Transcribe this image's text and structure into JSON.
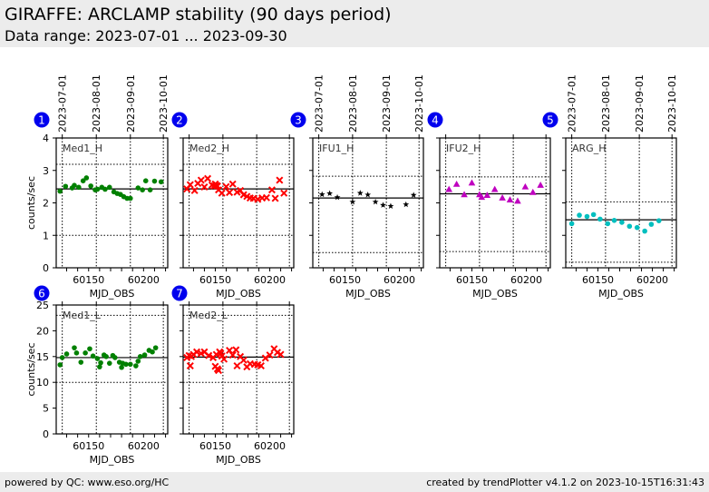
{
  "header": {
    "title": "GIRAFFE: ARCLAMP stability (90 days period)",
    "subtitle": "Data range: 2023-07-01 ... 2023-09-30"
  },
  "footer": {
    "left": "powered by QC: www.eso.org/HC",
    "right": "created by trendPlotter v4.1.2 on 2023-10-15T16:31:43"
  },
  "chart_data": [
    {
      "type": "scatter",
      "panel": 1,
      "label": "Med1_H",
      "color": "#008000",
      "marker": "circle",
      "xlabel": "MJD_OBS",
      "ylabel": "counts/sec",
      "xlim": [
        60120.5,
        60222
      ],
      "ylim": [
        0,
        4
      ],
      "xticks": [
        60150,
        60200
      ],
      "yticks": [
        0,
        1,
        2,
        3,
        4
      ],
      "date_ticks": [
        {
          "label": "2023-07-01",
          "mjd": 60126
        },
        {
          "label": "2023-08-01",
          "mjd": 60157
        },
        {
          "label": "2023-09-01",
          "mjd": 60188
        },
        {
          "label": "2023-10-01",
          "mjd": 60218
        }
      ],
      "mean": 2.43,
      "limits": [
        1.0,
        3.19
      ],
      "x": [
        60124,
        60129,
        60135,
        60137,
        60141,
        60145,
        60148,
        60152,
        60156,
        60158,
        60162,
        60165,
        60169,
        60173,
        60176,
        60179,
        60182,
        60185,
        60188,
        60195,
        60199,
        60202,
        60206,
        60210,
        60216
      ],
      "y": [
        2.36,
        2.51,
        2.46,
        2.54,
        2.48,
        2.68,
        2.77,
        2.52,
        2.4,
        2.42,
        2.48,
        2.42,
        2.48,
        2.34,
        2.29,
        2.26,
        2.19,
        2.14,
        2.14,
        2.46,
        2.4,
        2.68,
        2.4,
        2.67,
        2.65
      ]
    },
    {
      "type": "scatter",
      "panel": 2,
      "label": "Med2_H",
      "color": "#ff0000",
      "marker": "x",
      "xlabel": "MJD_OBS",
      "ylabel": "",
      "xlim": [
        60120.5,
        60222
      ],
      "ylim": [
        0,
        4
      ],
      "xticks": [
        60150,
        60200
      ],
      "yticks": [
        0,
        1,
        2,
        3,
        4
      ],
      "date_ticks": [
        {
          "label": "",
          "mjd": 60126
        },
        {
          "label": "",
          "mjd": 60157
        },
        {
          "label": "",
          "mjd": 60188
        },
        {
          "label": "",
          "mjd": 60218
        }
      ],
      "mean": 2.43,
      "limits": [
        1.0,
        3.19
      ],
      "x": [
        60124,
        60127,
        60131,
        60134,
        60137,
        60140,
        60143,
        60147,
        60149,
        60150,
        60151,
        60152,
        60153,
        60156,
        60160,
        60163,
        60166,
        60170,
        60173,
        60176,
        60179,
        60182,
        60185,
        60189,
        60193,
        60197,
        60202,
        60205,
        60209,
        60213
      ],
      "y": [
        2.43,
        2.56,
        2.38,
        2.6,
        2.7,
        2.49,
        2.75,
        2.55,
        2.52,
        2.58,
        2.53,
        2.52,
        2.4,
        2.3,
        2.5,
        2.32,
        2.58,
        2.33,
        2.38,
        2.25,
        2.2,
        2.15,
        2.14,
        2.11,
        2.15,
        2.16,
        2.4,
        2.14,
        2.7,
        2.3
      ]
    },
    {
      "type": "scatter",
      "panel": 3,
      "label": "IFU1_H",
      "color": "#000000",
      "marker": "star",
      "xlabel": "MJD_OBS",
      "ylabel": "",
      "xlim": [
        60120.5,
        60222
      ],
      "ylim": [
        0,
        4
      ],
      "xticks": [
        60150,
        60200
      ],
      "yticks": [
        0,
        1,
        2,
        3,
        4
      ],
      "date_ticks": [
        {
          "label": "2023-07-01",
          "mjd": 60126
        },
        {
          "label": "2023-08-01",
          "mjd": 60157
        },
        {
          "label": "2023-09-01",
          "mjd": 60188
        },
        {
          "label": "2023-10-01",
          "mjd": 60218
        }
      ],
      "mean": 2.15,
      "limits": [
        0.47,
        2.82
      ],
      "x": [
        60129,
        60136,
        60143,
        60157,
        60164,
        60171,
        60178,
        60185,
        60192,
        60206,
        60213
      ],
      "y": [
        2.26,
        2.29,
        2.17,
        2.03,
        2.3,
        2.25,
        2.03,
        1.93,
        1.9,
        1.95,
        2.24
      ]
    },
    {
      "type": "scatter",
      "panel": 4,
      "label": "IFU2_H",
      "color": "#bf00bf",
      "marker": "triangle",
      "xlabel": "MJD_OBS",
      "ylabel": "",
      "xlim": [
        60120.5,
        60222
      ],
      "ylim": [
        0,
        4
      ],
      "xticks": [
        60150,
        60200
      ],
      "yticks": [
        0,
        1,
        2,
        3,
        4
      ],
      "date_ticks": [
        {
          "label": "",
          "mjd": 60126
        },
        {
          "label": "",
          "mjd": 60157
        },
        {
          "label": "",
          "mjd": 60188
        },
        {
          "label": "",
          "mjd": 60218
        }
      ],
      "mean": 2.28,
      "limits": [
        0.5,
        2.8
      ],
      "x": [
        60129,
        60136,
        60143,
        60150,
        60157,
        60159,
        60164,
        60171,
        60178,
        60185,
        60192,
        60199,
        60206,
        60213
      ],
      "y": [
        2.42,
        2.58,
        2.26,
        2.62,
        2.26,
        2.18,
        2.24,
        2.42,
        2.16,
        2.1,
        2.06,
        2.5,
        2.33,
        2.55
      ]
    },
    {
      "type": "scatter",
      "panel": 5,
      "label": "ARG_H",
      "color": "#00bfbf",
      "marker": "circle",
      "xlabel": "MJD_OBS",
      "ylabel": "",
      "xlim": [
        60120.5,
        60222
      ],
      "ylim": [
        0,
        4
      ],
      "xticks": [
        60150,
        60200
      ],
      "yticks": [
        0,
        1,
        2,
        3,
        4
      ],
      "date_ticks": [
        {
          "label": "2023-07-01",
          "mjd": 60126
        },
        {
          "label": "2023-08-01",
          "mjd": 60157
        },
        {
          "label": "2023-09-01",
          "mjd": 60188
        },
        {
          "label": "2023-10-01",
          "mjd": 60218
        }
      ],
      "mean": 1.48,
      "limits": [
        0.17,
        2.03
      ],
      "x": [
        60126,
        60133,
        60140,
        60146,
        60152,
        60159,
        60165,
        60172,
        60179,
        60186,
        60193,
        60199,
        60206
      ],
      "y": [
        1.36,
        1.62,
        1.58,
        1.64,
        1.5,
        1.36,
        1.46,
        1.4,
        1.28,
        1.24,
        1.13,
        1.34,
        1.45
      ]
    },
    {
      "type": "scatter",
      "panel": 6,
      "label": "Med1_L",
      "color": "#008000",
      "marker": "circle",
      "xlabel": "MJD_OBS",
      "ylabel": "counts/sec",
      "xlim": [
        60120.5,
        60222
      ],
      "ylim": [
        0,
        25
      ],
      "xticks": [
        60150,
        60200
      ],
      "yticks": [
        0,
        5,
        10,
        15,
        20,
        25
      ],
      "date_ticks": [
        {
          "label": "",
          "mjd": 60126
        },
        {
          "label": "",
          "mjd": 60157
        },
        {
          "label": "",
          "mjd": 60188
        },
        {
          "label": "",
          "mjd": 60218
        }
      ],
      "mean": 14.8,
      "limits": [
        10.0,
        23.0
      ],
      "x": [
        60124,
        60126,
        60130,
        60137,
        60139,
        60143,
        60147,
        60151,
        60154,
        60158,
        60160,
        60161,
        60164,
        60166,
        60169,
        60172,
        60174,
        60178,
        60180,
        60181,
        60184,
        60188,
        60193,
        60195,
        60197,
        60201,
        60205,
        60208,
        60211
      ],
      "y": [
        13.4,
        14.8,
        15.5,
        16.7,
        15.7,
        13.9,
        15.7,
        16.5,
        15.1,
        14.6,
        13.0,
        13.8,
        15.3,
        15.0,
        13.7,
        15.2,
        14.8,
        13.9,
        12.9,
        13.7,
        13.5,
        13.5,
        13.2,
        14.1,
        15.0,
        15.3,
        16.2,
        15.9,
        16.7
      ]
    },
    {
      "type": "scatter",
      "panel": 7,
      "label": "Med2_L",
      "color": "#ff0000",
      "marker": "x",
      "xlabel": "MJD_OBS",
      "ylabel": "",
      "xlim": [
        60120.5,
        60222
      ],
      "ylim": [
        0,
        25
      ],
      "xticks": [
        60150,
        60200
      ],
      "yticks": [
        0,
        5,
        10,
        15,
        20,
        25
      ],
      "date_ticks": [
        {
          "label": "",
          "mjd": 60126
        },
        {
          "label": "",
          "mjd": 60157
        },
        {
          "label": "",
          "mjd": 60188
        },
        {
          "label": "",
          "mjd": 60218
        }
      ],
      "mean": 14.9,
      "limits": [
        10.0,
        23.0
      ],
      "x": [
        60124,
        60126,
        60127,
        60128,
        60130,
        60133,
        60137,
        60140,
        60144,
        60148,
        60150,
        60151,
        60152,
        60153,
        60154,
        60155,
        60156,
        60158,
        60163,
        60166,
        60169,
        60170,
        60173,
        60176,
        60179,
        60182,
        60186,
        60189,
        60192,
        60196,
        60200,
        60204,
        60207,
        60210
      ],
      "y": [
        14.8,
        15.2,
        13.2,
        15.0,
        15.4,
        15.9,
        15.6,
        15.9,
        15.2,
        14.8,
        13.1,
        15.4,
        12.6,
        12.3,
        15.9,
        15.6,
        15.1,
        14.5,
        16.2,
        15.3,
        16.3,
        13.2,
        15.0,
        14.3,
        13.0,
        13.6,
        13.5,
        13.4,
        13.2,
        14.7,
        15.3,
        16.5,
        15.8,
        15.4
      ]
    }
  ],
  "panels_layout_note": "panel badges",
  "badges": [
    "1",
    "2",
    "3",
    "4",
    "5",
    "6",
    "7"
  ]
}
